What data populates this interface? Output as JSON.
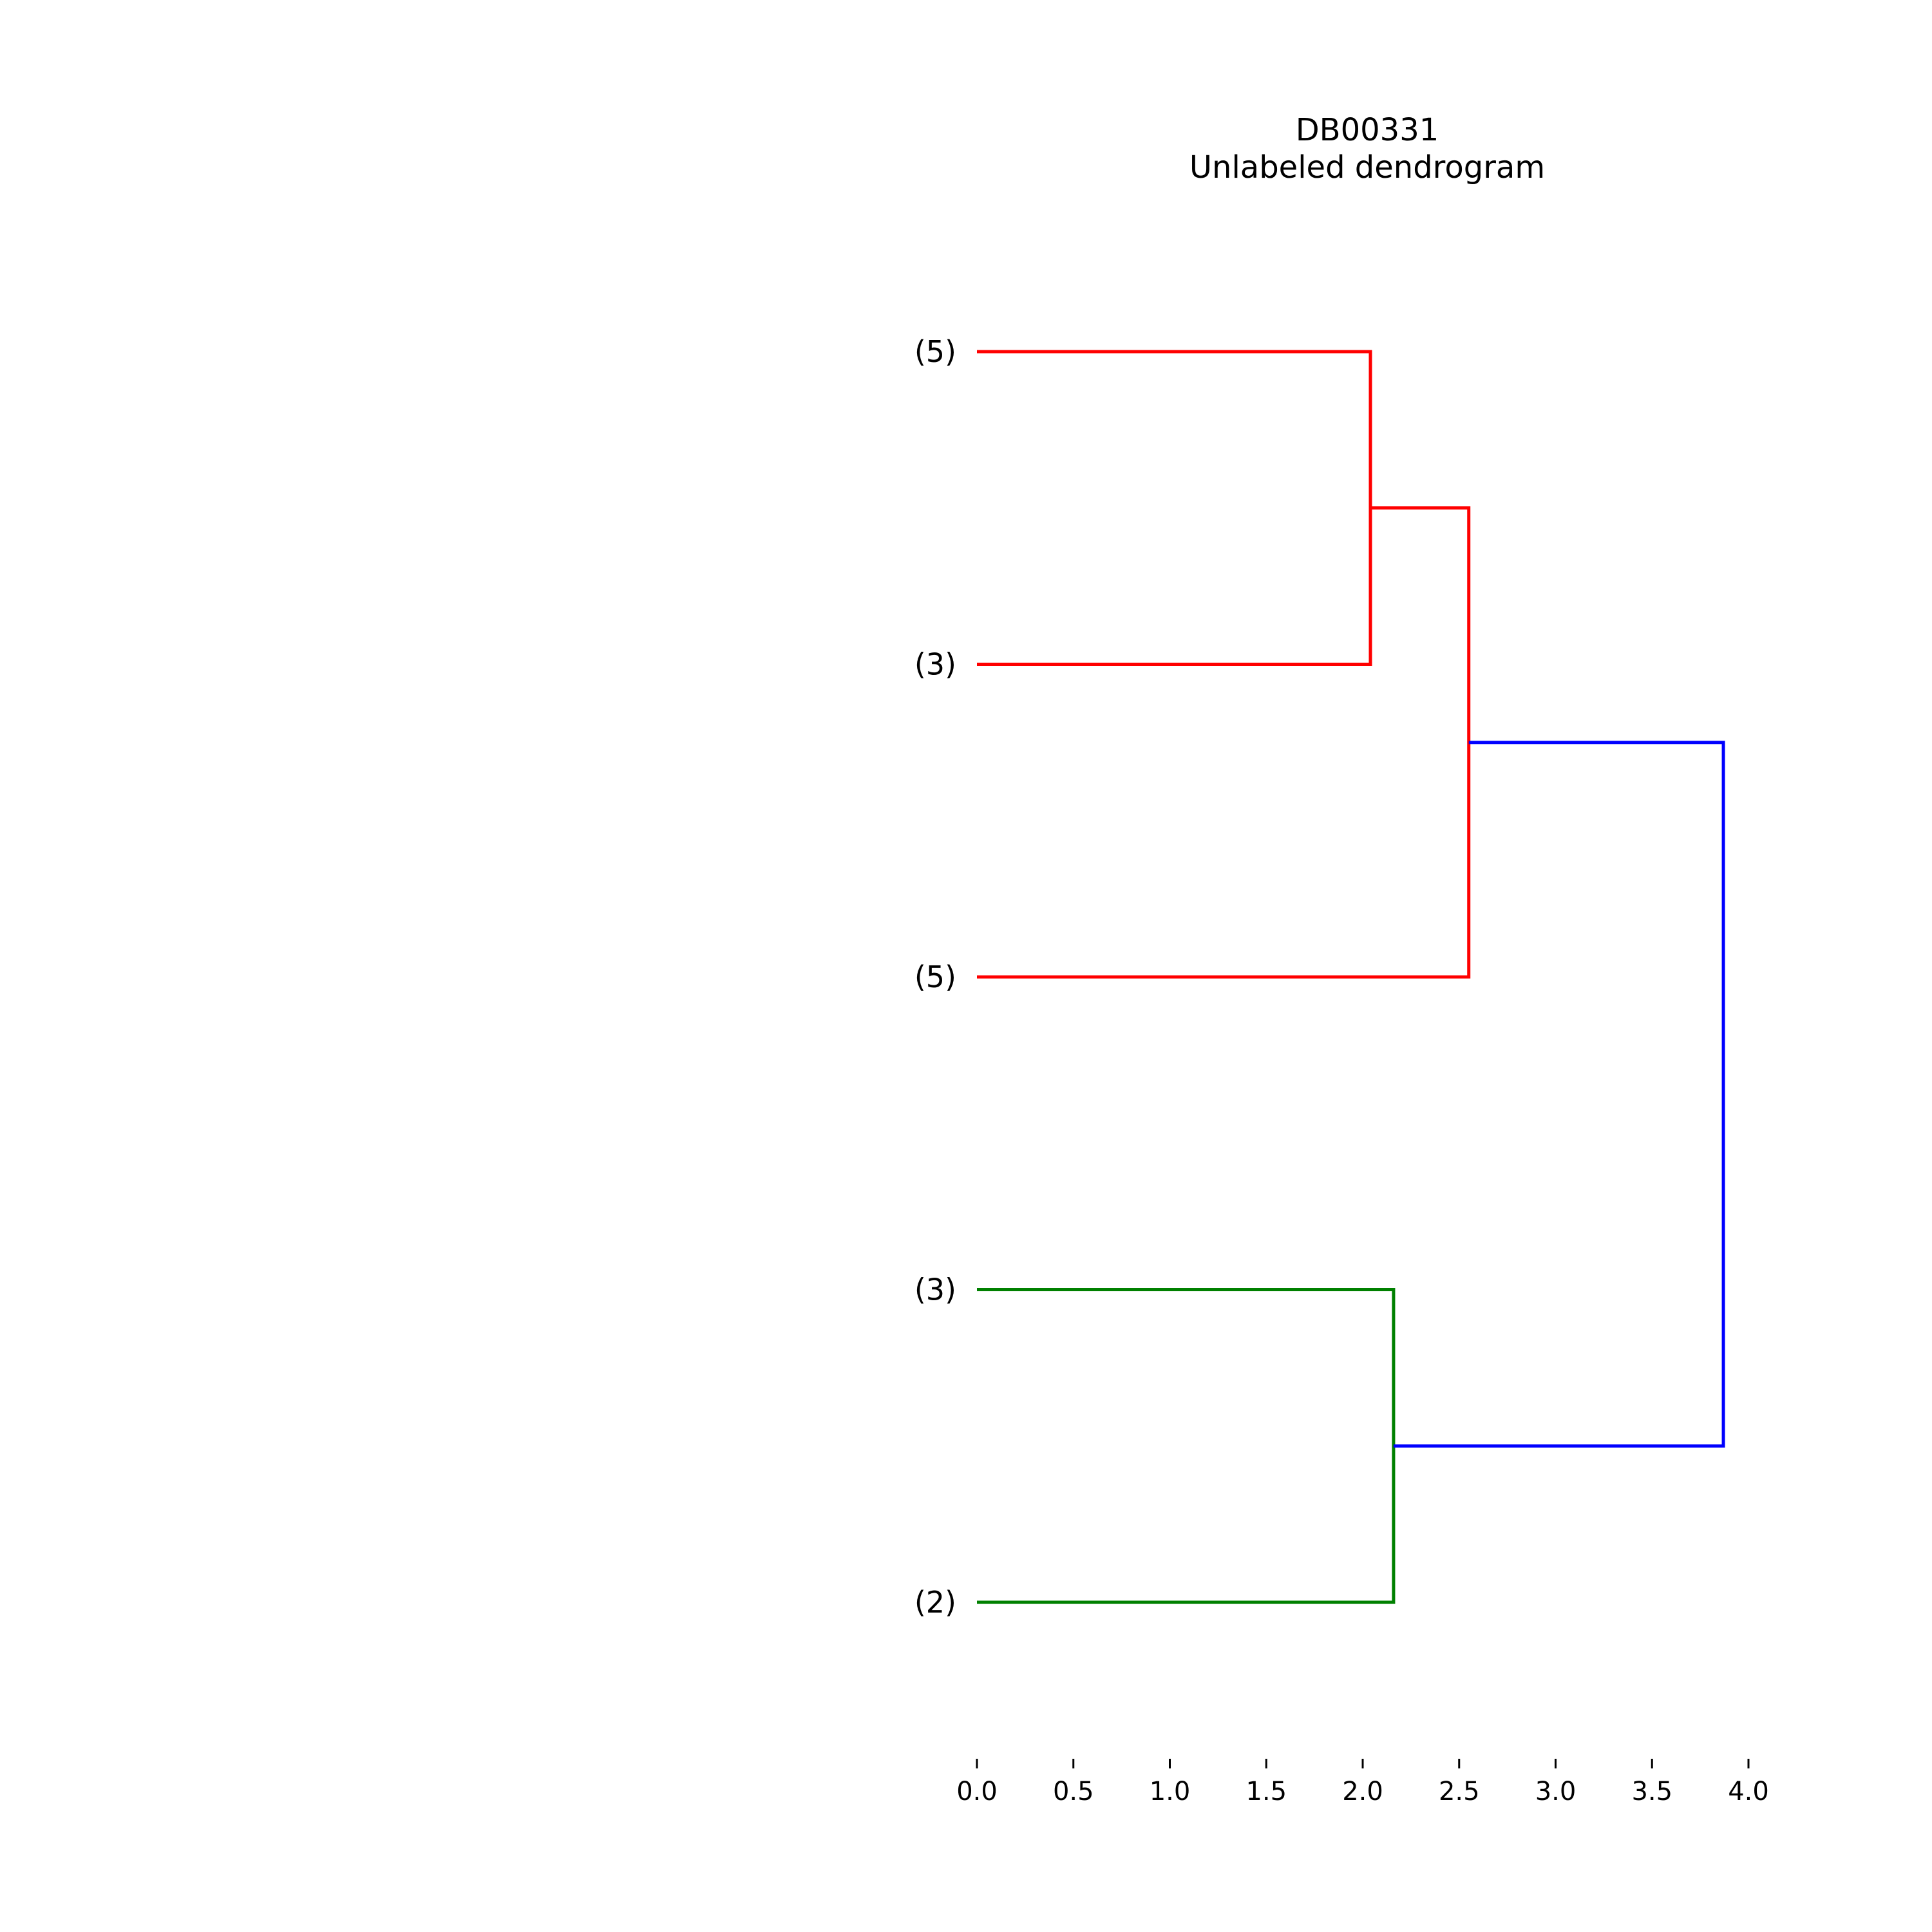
{
  "chart_data": {
    "type": "dendrogram",
    "title": "DB00331",
    "subtitle": "Unlabeled dendrogram",
    "orientation": "left",
    "xlim": [
      0,
      4.0
    ],
    "xticks": [
      "0.0",
      "0.5",
      "1.0",
      "1.5",
      "2.0",
      "2.5",
      "3.0",
      "3.5",
      "4.0"
    ],
    "grid": false,
    "leaves": [
      "(5)",
      "(3)",
      "(5)",
      "(3)",
      "(2)"
    ],
    "links": [
      {
        "left": 0,
        "right": 1,
        "height": 2.04,
        "color": "#ff0000"
      },
      {
        "left": "n0",
        "right": 2,
        "height": 2.55,
        "color": "#ff0000"
      },
      {
        "left": 3,
        "right": 4,
        "height": 2.16,
        "color": "#008000"
      },
      {
        "left": "n1",
        "right": "n2",
        "height": 3.87,
        "color": "#0000ff"
      }
    ]
  }
}
